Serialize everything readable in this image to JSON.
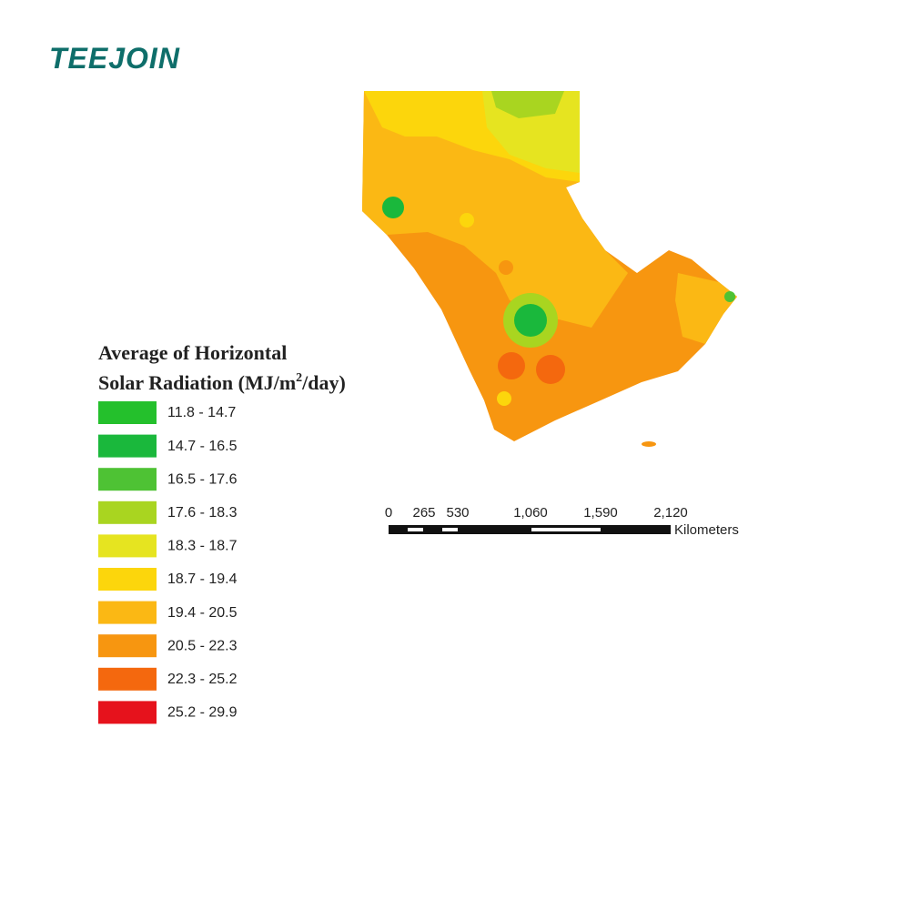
{
  "logo": "TEEJOIN",
  "legend": {
    "title_line1": "Average of Horizontal",
    "title_line2": {
      "before": "Solar Radiation (MJ/m",
      "superscript": "2",
      "after": "/day)"
    },
    "items": [
      {
        "label": "11.8 - 14.7",
        "color": "#24c02c"
      },
      {
        "label": "14.7 - 16.5",
        "color": "#1ab83c"
      },
      {
        "label": "16.5 - 17.6",
        "color": "#4ec234"
      },
      {
        "label": "17.6 - 18.3",
        "color": "#a9d520"
      },
      {
        "label": "18.3 - 18.7",
        "color": "#e6e420"
      },
      {
        "label": "18.7 - 19.4",
        "color": "#fcd60c"
      },
      {
        "label": "19.4 - 20.5",
        "color": "#fbb814"
      },
      {
        "label": "20.5 - 22.3",
        "color": "#f79610"
      },
      {
        "label": "22.3 - 25.2",
        "color": "#f4680e"
      },
      {
        "label": "25.2 - 29.9",
        "color": "#e6121c"
      }
    ]
  },
  "scale_bar": {
    "ticks": [
      "0",
      "265",
      "530",
      "1,060",
      "1,590",
      "2,120"
    ],
    "unit": "Kilometers"
  }
}
